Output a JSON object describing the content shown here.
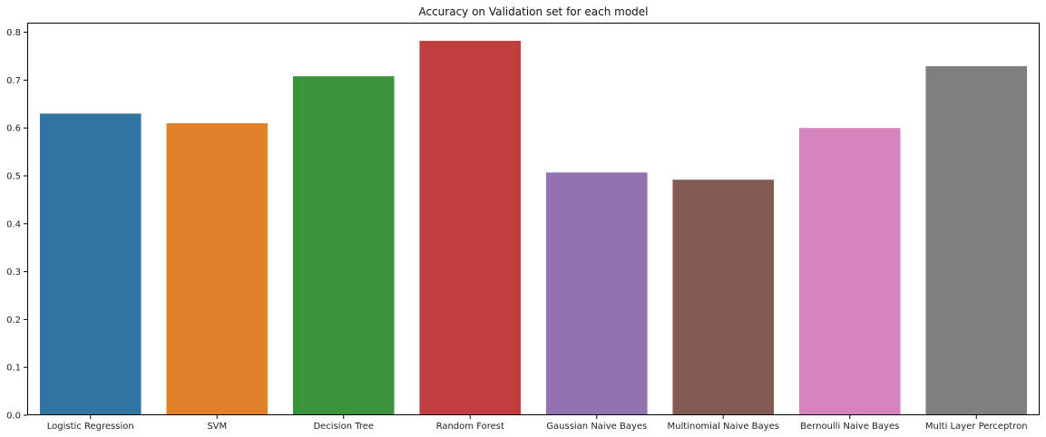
{
  "chart_data": {
    "type": "bar",
    "title": "Accuracy on Validation set for each model",
    "xlabel": "",
    "ylabel": "",
    "categories": [
      "Logistic Regression",
      "SVM",
      "Decision Tree",
      "Random Forest",
      "Gaussian Naive Bayes",
      "Multinomial Naive Bayes",
      "Bernoulli Naive Bayes",
      "Multi Layer Perceptron"
    ],
    "values": [
      0.63,
      0.61,
      0.708,
      0.782,
      0.507,
      0.492,
      0.6,
      0.729
    ],
    "colors": [
      "#3274a1",
      "#e1812c",
      "#3a923a",
      "#c03d3e",
      "#9372b2",
      "#845b53",
      "#d684bd",
      "#7f7f7f"
    ],
    "ylim": [
      0,
      0.82
    ],
    "yticks": [
      "0.0",
      "0.1",
      "0.2",
      "0.3",
      "0.4",
      "0.5",
      "0.6",
      "0.7",
      "0.8"
    ],
    "grid": false,
    "legend": "none"
  }
}
